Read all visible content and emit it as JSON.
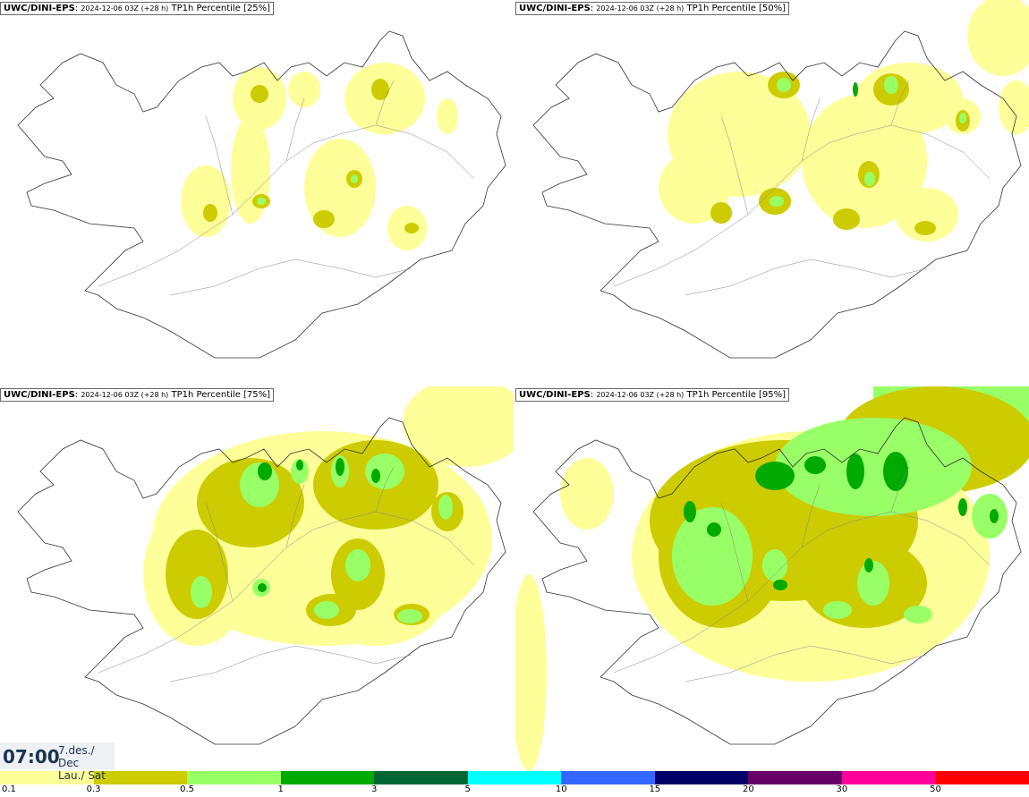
{
  "panels": [
    {
      "model": "UWC/DINI-EPS",
      "run": "2024-12-06 03Z (+28 h)",
      "field": "TP1h Percentile [25%]"
    },
    {
      "model": "UWC/DINI-EPS",
      "run": "2024-12-06 03Z (+28 h)",
      "field": "TP1h Percentile [50%]"
    },
    {
      "model": "UWC/DINI-EPS",
      "run": "2024-12-06 03Z (+28 h)",
      "field": "TP1h Percentile [75%]"
    },
    {
      "model": "UWC/DINI-EPS",
      "run": "2024-12-06 03Z (+28 h)",
      "field": "TP1h Percentile [95%]"
    }
  ],
  "valid_time": {
    "time": "07:00",
    "date_line1": "7.des./ Dec",
    "date_line2": "Lau./ Sat"
  },
  "legend": {
    "labels": [
      "0.1",
      "0.3",
      "0.5",
      "1",
      "3",
      "5",
      "10",
      "15",
      "20",
      "30",
      "50"
    ],
    "colors": [
      "#ffff99",
      "#cccc00",
      "#99ff66",
      "#00aa00",
      "#006633",
      "#00ffff",
      "#3366ff",
      "#000066",
      "#660066",
      "#ff0099",
      "#ff0000"
    ]
  }
}
